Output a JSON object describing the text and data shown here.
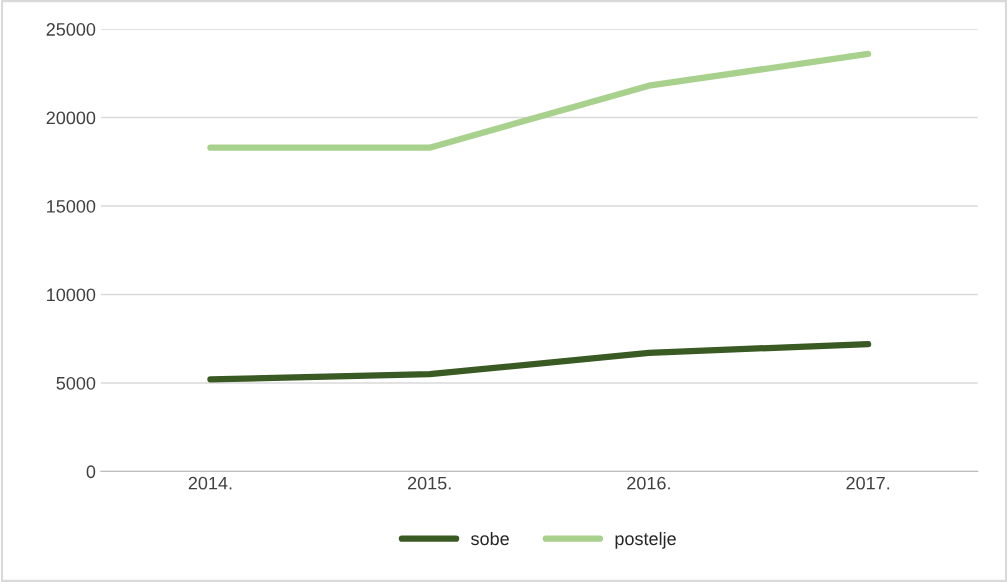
{
  "chart_data": {
    "type": "line",
    "categories": [
      "2014.",
      "2015.",
      "2016.",
      "2017."
    ],
    "series": [
      {
        "name": "sobe",
        "color": "#3a5a24",
        "values": [
          5200,
          5500,
          6700,
          7200
        ]
      },
      {
        "name": "postelje",
        "color": "#a9d18e",
        "values": [
          18300,
          18300,
          21800,
          23600
        ]
      }
    ],
    "ylim": [
      0,
      25000
    ],
    "yticks": [
      0,
      5000,
      10000,
      15000,
      20000,
      25000
    ],
    "grid": "y",
    "legend": "bottom",
    "marker": "none",
    "line_style": "solid"
  }
}
